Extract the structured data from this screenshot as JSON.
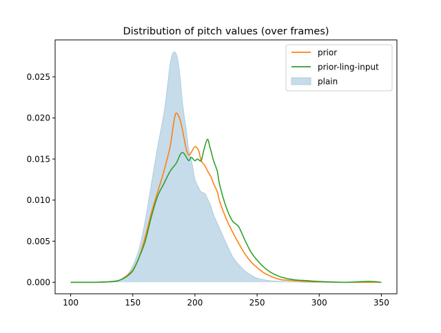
{
  "chart_data": {
    "type": "area",
    "title": "Distribution of pitch values (over frames)",
    "xlabel": "",
    "ylabel": "",
    "xlim": [
      87.5,
      362.5
    ],
    "ylim": [
      -0.0014,
      0.0295
    ],
    "x_ticks": [
      100,
      150,
      200,
      250,
      300,
      350
    ],
    "y_ticks": [
      0.0,
      0.005,
      0.01,
      0.015,
      0.02,
      0.025
    ],
    "x_tick_labels": [
      "100",
      "150",
      "200",
      "250",
      "300",
      "350"
    ],
    "y_tick_labels": [
      "0.000",
      "0.005",
      "0.010",
      "0.015",
      "0.020",
      "0.025"
    ],
    "grid": false,
    "legend": {
      "placement": "top-right",
      "entries": [
        "prior",
        "prior-ling-input",
        "plain"
      ]
    },
    "colors": {
      "prior": "#ff7f0e",
      "prior-ling-input": "#2ca02c",
      "plain_fill": "#c6dcea",
      "plain_edge": "#aecbe0"
    },
    "series": [
      {
        "name": "prior",
        "kind": "line",
        "x": [
          100,
          120,
          135,
          140,
          145,
          150,
          155,
          160,
          165,
          170,
          175,
          180,
          183,
          185,
          188,
          190,
          193,
          195,
          197,
          200,
          203,
          205,
          208,
          210,
          213,
          215,
          218,
          220,
          225,
          230,
          235,
          240,
          245,
          250,
          255,
          260,
          265,
          270,
          280,
          290,
          300,
          320,
          340,
          350
        ],
        "y": [
          0.0,
          0.0,
          0.0001,
          0.0003,
          0.0008,
          0.0015,
          0.003,
          0.0055,
          0.0085,
          0.011,
          0.0135,
          0.0165,
          0.0195,
          0.0206,
          0.0198,
          0.0185,
          0.0162,
          0.0155,
          0.0158,
          0.0165,
          0.016,
          0.0148,
          0.0142,
          0.0136,
          0.0128,
          0.012,
          0.011,
          0.0098,
          0.0078,
          0.0062,
          0.0048,
          0.0035,
          0.0025,
          0.0018,
          0.0012,
          0.0008,
          0.0005,
          0.0003,
          0.0002,
          0.0001,
          5e-05,
          0.0,
          0.0,
          0.0
        ]
      },
      {
        "name": "prior-ling-input",
        "kind": "line",
        "x": [
          100,
          120,
          135,
          140,
          145,
          150,
          155,
          160,
          165,
          170,
          175,
          180,
          185,
          188,
          190,
          192,
          195,
          197,
          200,
          202,
          205,
          207,
          210,
          212,
          215,
          218,
          220,
          225,
          230,
          235,
          240,
          245,
          250,
          255,
          260,
          265,
          270,
          280,
          290,
          300,
          320,
          340,
          350
        ],
        "y": [
          0.0,
          0.0,
          0.0001,
          0.0003,
          0.0007,
          0.0014,
          0.003,
          0.005,
          0.008,
          0.0105,
          0.012,
          0.0135,
          0.0145,
          0.0155,
          0.0158,
          0.0155,
          0.0148,
          0.0152,
          0.0148,
          0.015,
          0.0148,
          0.016,
          0.0174,
          0.0165,
          0.0148,
          0.0135,
          0.0118,
          0.0092,
          0.0075,
          0.0068,
          0.0052,
          0.0037,
          0.0027,
          0.0019,
          0.0013,
          0.0009,
          0.0006,
          0.0003,
          0.0002,
          0.0001,
          0.0,
          0.0001,
          0.0
        ]
      },
      {
        "name": "plain",
        "kind": "area",
        "x": [
          100,
          120,
          130,
          140,
          145,
          150,
          155,
          160,
          165,
          170,
          175,
          178,
          180,
          182,
          184,
          186,
          188,
          190,
          193,
          195,
          198,
          200,
          203,
          205,
          208,
          210,
          213,
          215,
          220,
          225,
          230,
          235,
          240,
          245,
          250,
          260,
          270,
          280,
          290,
          300,
          320,
          350
        ],
        "y": [
          0.0,
          0.0,
          0.0001,
          0.0003,
          0.0008,
          0.002,
          0.004,
          0.0075,
          0.012,
          0.0165,
          0.0205,
          0.024,
          0.0265,
          0.0278,
          0.028,
          0.0272,
          0.025,
          0.0218,
          0.0185,
          0.0162,
          0.0142,
          0.0125,
          0.0115,
          0.011,
          0.0108,
          0.0102,
          0.0092,
          0.0082,
          0.0065,
          0.0048,
          0.0032,
          0.0022,
          0.0014,
          0.0009,
          0.0005,
          0.0002,
          0.0001,
          5e-05,
          0.0,
          0.0,
          0.0,
          0.0
        ]
      }
    ]
  }
}
